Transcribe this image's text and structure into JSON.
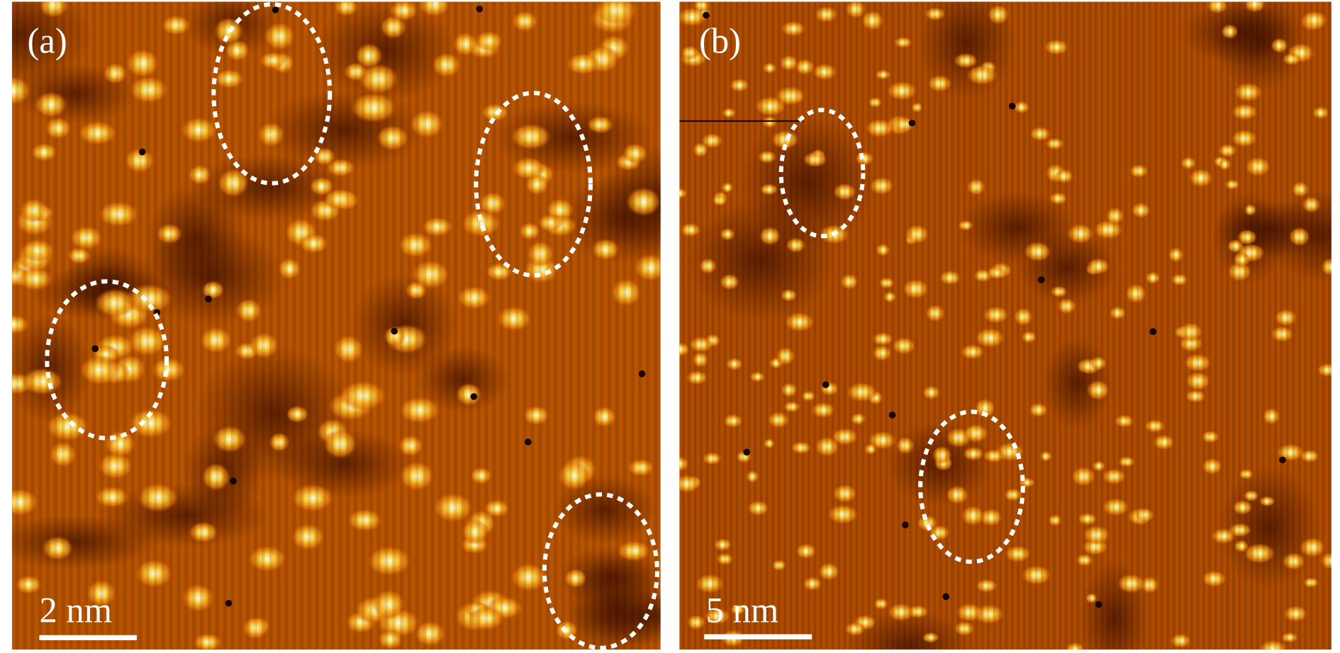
{
  "panels": [
    {
      "label": "(a)",
      "scale_bar": "2 nm"
    },
    {
      "label": "(b)",
      "scale_bar": "5 nm"
    }
  ]
}
